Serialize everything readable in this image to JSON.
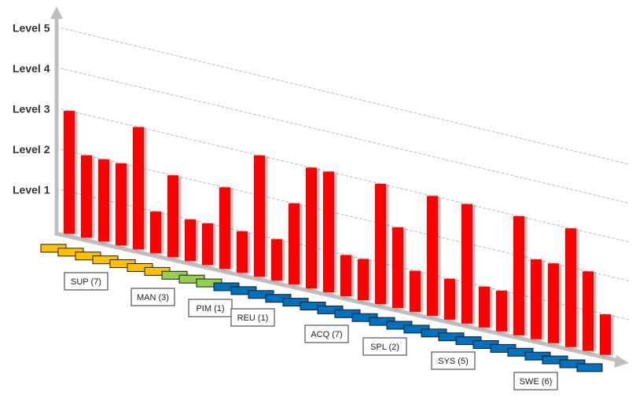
{
  "chart_data": {
    "type": "bar",
    "title": "",
    "xlabel": "",
    "ylabel": "",
    "ylim": [
      0,
      5
    ],
    "grid": true,
    "y_tick_labels": [
      "Level 1",
      "Level 2",
      "Level 3",
      "Level 4",
      "Level 5"
    ],
    "groups": [
      {
        "label": "SUP (7)",
        "count": 7,
        "color": "#FFC000"
      },
      {
        "label": "MAN (3)",
        "count": 3,
        "color": "#92D050"
      },
      {
        "label": "PIM (1)",
        "count": 1,
        "color": "#0070C0"
      },
      {
        "label": "REU (1)",
        "count": 1,
        "color": "#0070C0"
      },
      {
        "label": "ACQ (7)",
        "count": 7,
        "color": "#0070C0"
      },
      {
        "label": "SPL (2)",
        "count": 2,
        "color": "#0070C0"
      },
      {
        "label": "SYS (5)",
        "count": 5,
        "color": "#0070C0"
      },
      {
        "label": "SWE (6)",
        "count": 6,
        "color": "#0070C0"
      }
    ],
    "values": [
      3,
      2,
      2,
      2,
      3,
      1,
      2,
      1,
      1,
      2,
      1,
      3,
      1,
      2,
      3,
      3,
      1,
      1,
      3,
      2,
      1,
      3,
      1,
      3,
      1,
      1,
      3,
      2,
      2,
      3,
      2,
      1
    ],
    "bar_color": "#FF0000"
  }
}
